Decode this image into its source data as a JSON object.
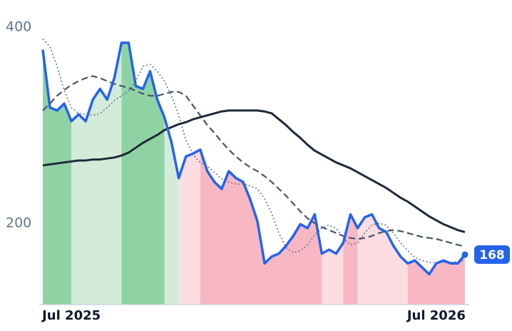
{
  "chart_data": {
    "type": "line",
    "categories": [
      null,
      null,
      null,
      null,
      "Jul 2025",
      null,
      null,
      null,
      null,
      null,
      null,
      null,
      null,
      null,
      null,
      null,
      null,
      null,
      null,
      null,
      null,
      null,
      null,
      null,
      null,
      null,
      null,
      null,
      null,
      null,
      null,
      null,
      null,
      null,
      null,
      null,
      null,
      null,
      null,
      null,
      null,
      null,
      null,
      null,
      null,
      null,
      null,
      null,
      null,
      null,
      null,
      null,
      null,
      null,
      null,
      "Jul 2026",
      null,
      null,
      null,
      null
    ],
    "series": [
      {
        "color": "#2563eb",
        "style": "solid",
        "values": [
          377,
          318,
          315,
          322,
          304,
          311,
          304,
          326,
          337,
          326,
          348,
          384,
          384,
          340,
          337,
          355,
          326,
          308,
          282,
          246,
          268,
          271,
          275,
          253,
          242,
          235,
          253,
          246,
          242,
          224,
          202,
          159,
          166,
          169,
          177,
          187,
          199,
          195,
          209,
          169,
          173,
          169,
          180,
          209,
          195,
          206,
          209,
          195,
          191,
          177,
          166,
          159,
          162,
          155,
          148,
          159,
          162,
          159,
          159,
          168
        ]
      },
      {
        "color": "#1e293b",
        "style": "solid",
        "values": [
          259,
          260,
          261,
          262,
          263,
          264,
          264,
          265,
          265,
          266,
          267,
          269,
          272,
          277,
          282,
          286,
          290,
          295,
          298,
          301,
          303,
          306,
          308,
          310,
          312,
          314,
          315,
          315,
          315,
          315,
          315,
          314,
          312,
          306,
          300,
          293,
          287,
          280,
          274,
          270,
          266,
          262,
          259,
          256,
          252,
          248,
          244,
          240,
          236,
          231,
          226,
          222,
          217,
          212,
          207,
          203,
          199,
          196,
          193,
          191
        ]
      },
      {
        "color": "#475569",
        "style": "dashed",
        "values": [
          315,
          322,
          330,
          336,
          341,
          345,
          348,
          350,
          348,
          345,
          342,
          340,
          338,
          335,
          332,
          330,
          330,
          332,
          334,
          334,
          330,
          320,
          310,
          300,
          292,
          283,
          275,
          268,
          262,
          257,
          253,
          248,
          242,
          235,
          228,
          220,
          212,
          205,
          200,
          196,
          193,
          190,
          187,
          185,
          184,
          185,
          187,
          190,
          192,
          193,
          192,
          190,
          188,
          186,
          185,
          184,
          182,
          180,
          178,
          176
        ]
      },
      {
        "color": "#64748b",
        "style": "dotted",
        "values": [
          388,
          380,
          360,
          335,
          318,
          312,
          311,
          310,
          312,
          318,
          325,
          330,
          335,
          345,
          360,
          362,
          355,
          345,
          330,
          310,
          285,
          270,
          262,
          258,
          252,
          245,
          242,
          240,
          240,
          238,
          235,
          225,
          210,
          190,
          175,
          170,
          172,
          178,
          188,
          195,
          198,
          195,
          185,
          178,
          180,
          190,
          198,
          200,
          198,
          190,
          180,
          172,
          165,
          162,
          160,
          160,
          160,
          160,
          161,
          162
        ]
      }
    ],
    "bands": [
      {
        "from": 0,
        "to": 4,
        "color": "#8fd3a4"
      },
      {
        "from": 4,
        "to": 11,
        "color": "#d3ecd9"
      },
      {
        "from": 11,
        "to": 17,
        "color": "#8fd3a4"
      },
      {
        "from": 17,
        "to": 19,
        "color": "#d3ecd9"
      },
      {
        "from": 19,
        "to": 22,
        "color": "#fcdde2"
      },
      {
        "from": 22,
        "to": 39,
        "color": "#f8b8c3"
      },
      {
        "from": 39,
        "to": 42,
        "color": "#fcdde2"
      },
      {
        "from": 42,
        "to": 44,
        "color": "#f8b8c3"
      },
      {
        "from": 44,
        "to": 51,
        "color": "#fcdde2"
      },
      {
        "from": 51,
        "to": 59,
        "color": "#f8b8c3"
      }
    ],
    "ylim": [
      117,
      400
    ],
    "yticks": [
      200,
      400
    ],
    "grid": false
  }
}
